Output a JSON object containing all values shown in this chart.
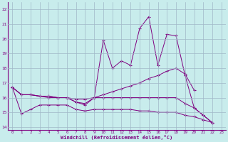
{
  "xlabel": "Windchill (Refroidissement éolien,°C)",
  "bg_color": "#c8ecec",
  "line_color": "#800080",
  "grid_color": "#a0b8c8",
  "xlim": [
    -0.5,
    23.5
  ],
  "ylim": [
    13.8,
    22.5
  ],
  "yticks": [
    14,
    15,
    16,
    17,
    18,
    19,
    20,
    21,
    22
  ],
  "xticks": [
    0,
    1,
    2,
    3,
    4,
    5,
    6,
    7,
    8,
    9,
    10,
    11,
    12,
    13,
    14,
    15,
    16,
    17,
    18,
    19,
    20,
    21,
    22,
    23
  ],
  "series": [
    [
      16.7,
      16.2,
      16.2,
      16.1,
      16.1,
      16.0,
      16.0,
      15.7,
      15.5,
      16.0,
      19.9,
      18.0,
      18.5,
      18.2,
      20.7,
      21.5,
      18.2,
      20.3,
      20.2,
      17.5,
      15.3,
      14.8,
      14.3,
      null
    ],
    [
      16.7,
      16.2,
      16.2,
      16.1,
      16.1,
      16.0,
      16.0,
      15.9,
      15.9,
      16.0,
      16.2,
      16.4,
      16.6,
      16.8,
      17.0,
      17.3,
      17.5,
      17.8,
      18.0,
      17.6,
      16.5,
      null,
      null,
      null
    ],
    [
      16.7,
      16.2,
      16.2,
      16.1,
      16.0,
      16.0,
      16.0,
      15.7,
      15.6,
      16.0,
      16.0,
      16.0,
      16.0,
      16.0,
      16.0,
      16.0,
      16.0,
      16.0,
      16.0,
      15.6,
      15.3,
      14.8,
      14.3,
      null
    ],
    [
      16.7,
      14.9,
      15.2,
      15.5,
      15.5,
      15.5,
      15.5,
      15.2,
      15.1,
      15.2,
      15.2,
      15.2,
      15.2,
      15.2,
      15.1,
      15.1,
      15.0,
      15.0,
      15.0,
      14.8,
      14.7,
      14.5,
      14.3,
      null
    ]
  ]
}
